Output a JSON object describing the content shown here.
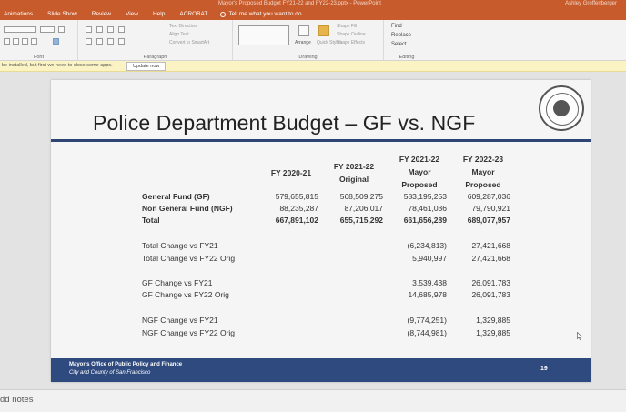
{
  "window": {
    "doc_title": "Mayor's Proposed Budget FY21-22 and FY22-23.pptx - PowerPoint",
    "user": "Ashley Groffenberger"
  },
  "tabs": [
    "Animations",
    "Slide Show",
    "Review",
    "View",
    "Help",
    "ACROBAT"
  ],
  "tell_me": "Tell me what you want to do",
  "ribbon": {
    "groups": [
      "Font",
      "Paragraph",
      "Drawing",
      "Editing"
    ],
    "paragraph_items": [
      "Text Direction",
      "Align Text",
      "Convert to SmartArt"
    ],
    "drawing_items": [
      "Arrange",
      "Quick Styles",
      "Shape Fill",
      "Shape Outline",
      "Shape Effects"
    ],
    "editing_items": [
      "Find",
      "Replace",
      "Select"
    ]
  },
  "notice": {
    "message": "be installed, but first we need to close some apps.",
    "button": "Update now"
  },
  "slide": {
    "title": "Police Department Budget – GF vs. NGF",
    "columns": [
      [
        "FY 2020-21"
      ],
      [
        "FY 2021-22",
        "Original"
      ],
      [
        "FY 2021-22",
        "Mayor",
        "Proposed"
      ],
      [
        "FY 2022-23",
        "Mayor",
        "Proposed"
      ]
    ],
    "main_rows": [
      {
        "label": "General Fund (GF)",
        "values": [
          "579,655,815",
          "568,509,275",
          "583,195,253",
          "609,287,036"
        ]
      },
      {
        "label": "Non General Fund (NGF)",
        "values": [
          "88,235,287",
          "87,206,017",
          "78,461,036",
          "79,790,921"
        ]
      },
      {
        "label": "Total",
        "values": [
          "667,891,102",
          "655,715,292",
          "661,656,289",
          "689,077,957"
        ]
      }
    ],
    "change_rows": [
      {
        "label": "Total Change vs FY21",
        "values": [
          "(6,234,813)",
          "27,421,668"
        ]
      },
      {
        "label": "Total Change vs FY22 Orig",
        "values": [
          "5,940,997",
          "27,421,668"
        ]
      },
      {
        "label": "GF Change vs FY21",
        "values": [
          "3,539,438",
          "26,091,783"
        ]
      },
      {
        "label": "GF Change vs FY22 Orig",
        "values": [
          "14,685,978",
          "26,091,783"
        ]
      },
      {
        "label": "NGF Change vs FY21",
        "values": [
          "(9,774,251)",
          "1,329,885"
        ]
      },
      {
        "label": "NGF Change vs FY22 Orig",
        "values": [
          "(8,744,981)",
          "1,329,885"
        ]
      }
    ],
    "footer_org": "Mayor's Office of Public Policy and Finance",
    "footer_sub": "City and County of San Francisco",
    "page_number": "19"
  },
  "notes_placeholder": "dd notes",
  "colors": {
    "accent_orange": "#c75b2c",
    "slide_navy": "#2e4a7e"
  }
}
